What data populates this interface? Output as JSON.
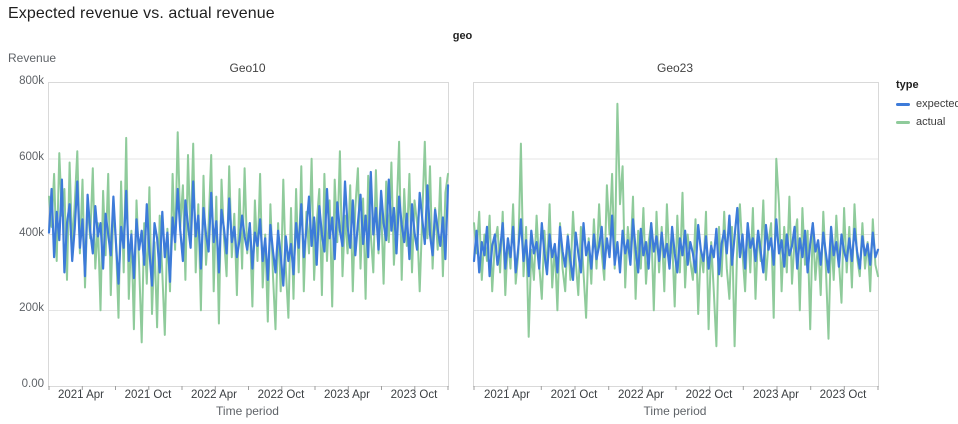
{
  "title": "Expected revenue vs. actual revenue",
  "facet_field_label": "geo",
  "legend": {
    "title": "type",
    "items": [
      {
        "name": "expected",
        "label": "expected",
        "color": "#3d7bd9"
      },
      {
        "name": "actual",
        "label": "actual",
        "color": "#8fcb9b"
      }
    ]
  },
  "colors": {
    "gridline": "#e4e4e4",
    "panel_border": "#d9d9d9",
    "tick_mark": "#9e9e9e",
    "background": "#ffffff"
  },
  "chart_data": {
    "type": "line",
    "ylabel": "Revenue",
    "xlabel": "Time period",
    "value_unit": "thousands",
    "interval": "weekly",
    "x_range": "Jan 2021 - Jan 2024",
    "ylim_k": [
      0,
      800
    ],
    "y_ticks": [
      "0.00",
      "200k",
      "400k",
      "600k",
      "800k"
    ],
    "gridline_values_k": [
      200,
      400,
      600
    ],
    "x_total_months": 36,
    "x_tick_months": [
      3,
      9,
      15,
      21,
      27,
      33
    ],
    "x_tick_labels": [
      "2021 Apr",
      "2021 Oct",
      "2022 Apr",
      "2022 Oct",
      "2023 Apr",
      "2023 Oct"
    ],
    "x_minor_tick_months": [
      0,
      6,
      12,
      18,
      24,
      30,
      36
    ],
    "facets": [
      {
        "title": "Geo10",
        "series": [
          {
            "name": "expected",
            "values": [
              405,
              520,
              340,
              460,
              385,
              545,
              300,
              430,
              480,
              330,
              415,
              540,
              365,
              440,
              290,
              505,
              410,
              350,
              475,
              395,
              430,
              310,
              455,
              400,
              345,
              500,
              380,
              270,
              420,
              365,
              515,
              330,
              400,
              285,
              440,
              360,
              410,
              320,
              480,
              355,
              265,
              430,
              390,
              300,
              460,
              340,
              405,
              275,
              445,
              380,
              520,
              410,
              330,
              490,
              425,
              365,
              540,
              395,
              450,
              310,
              470,
              400,
              355,
              510,
              380,
              435,
              300,
              465,
              415,
              350,
              495,
              380,
              420,
              340,
              385,
              450,
              395,
              360,
              430,
              310,
              405,
              370,
              440,
              330,
              390,
              280,
              425,
              355,
              300,
              410,
              345,
              265,
              395,
              330,
              375,
              295,
              430,
              365,
              480,
              340,
              415,
              500,
              370,
              445,
              320,
              475,
              400,
              355,
              520,
              390,
              445,
              335,
              485,
              410,
              370,
              540,
              420,
              365,
              490,
              345,
              430,
              505,
              375,
              450,
              340,
              565,
              400,
              470,
              360,
              515,
              430,
              385,
              545,
              410,
              470,
              350,
              500,
              425,
              380,
              455,
              335,
              480,
              405,
              360,
              510,
              440,
              375,
              530,
              400,
              345,
              465,
              415,
              370,
              445,
              335,
              530
            ]
          },
          {
            "name": "actual",
            "values": [
              500,
              420,
              560,
              330,
              615,
              450,
              520,
              280,
              590,
              370,
              480,
              620,
              350,
              545,
              260,
              480,
              390,
              575,
              310,
              430,
              200,
              515,
              345,
              560,
              240,
              470,
              385,
              180,
              540,
              300,
              655,
              230,
              410,
              150,
              490,
              320,
              115,
              430,
              270,
              525,
              190,
              380,
              155,
              450,
              300,
              135,
              415,
              250,
              560,
              360,
              670,
              420,
              530,
              280,
              610,
              385,
              640,
              300,
              480,
              200,
              555,
              320,
              425,
              610,
              250,
              500,
              165,
              545,
              390,
              290,
              580,
              340,
              455,
              240,
              520,
              310,
              575,
              350,
              430,
              210,
              490,
              330,
              560,
              260,
              400,
              170,
              480,
              290,
              150,
              430,
              250,
              545,
              310,
              180,
              470,
              230,
              520,
              300,
              580,
              250,
              460,
              350,
              600,
              280,
              430,
              520,
              240,
              560,
              330,
              490,
              210,
              545,
              380,
              620,
              290,
              450,
              350,
              530,
              250,
              470,
              575,
              310,
              495,
              230,
              555,
              400,
              300,
              570,
              350,
              480,
              270,
              540,
              380,
              590,
              320,
              450,
              645,
              280,
              520,
              370,
              560,
              300,
              490,
              430,
              250,
              450,
              645,
              390,
              580,
              310,
              470,
              360,
              550,
              290,
              510,
              560
            ]
          }
        ]
      },
      {
        "title": "Geo23",
        "series": [
          {
            "name": "expected",
            "values": [
              330,
              410,
              300,
              380,
              345,
              420,
              290,
              370,
              400,
              320,
              360,
              430,
              310,
              390,
              340,
              420,
              300,
              365,
              440,
              330,
              385,
              290,
              410,
              350,
              380,
              310,
              430,
              350,
              295,
              400,
              340,
              375,
              300,
              420,
              355,
              315,
              395,
              330,
              280,
              405,
              350,
              300,
              430,
              345,
              380,
              310,
              400,
              335,
              370,
              420,
              310,
              390,
              340,
              450,
              320,
              380,
              300,
              410,
              350,
              385,
              320,
              440,
              360,
              300,
              415,
              345,
              380,
              310,
              430,
              355,
              395,
              330,
              405,
              340,
              375,
              310,
              420,
              350,
              300,
              390,
              345,
              410,
              320,
              380,
              350,
              300,
              425,
              360,
              330,
              395,
              310,
              370,
              340,
              415,
              295,
              375,
              410,
              350,
              450,
              320,
              395,
              470,
              340,
              400,
              310,
              430,
              365,
              390,
              330,
              410,
              355,
              300,
              425,
              360,
              390,
              320,
              440,
              350,
              385,
              315,
              400,
              345,
              370,
              420,
              310,
              390,
              340,
              410,
              300,
              375,
              430,
              355,
              385,
              320,
              405,
              350,
              300,
              420,
              345,
              380,
              315,
              400,
              355,
              330,
              390,
              330,
              415,
              355,
              310,
              395,
              345,
              375,
              320,
              405,
              340,
              360
            ]
          },
          {
            "name": "actual",
            "values": [
              430,
              350,
              460,
              280,
              400,
              330,
              450,
              250,
              380,
              420,
              300,
              460,
              240,
              390,
              310,
              480,
              270,
              350,
              640,
              290,
              420,
              130,
              360,
              280,
              450,
              320,
              230,
              410,
              300,
              480,
              260,
              370,
              200,
              430,
              310,
              250,
              400,
              280,
              460,
              330,
              240,
              420,
              300,
              180,
              390,
              270,
              440,
              310,
              480,
              350,
              280,
              530,
              400,
              560,
              310,
              745,
              480,
              580,
              260,
              420,
              340,
              500,
              230,
              410,
              310,
              470,
              270,
              380,
              430,
              200,
              460,
              300,
              420,
              250,
              480,
              320,
              390,
              210,
              450,
              300,
              510,
              260,
              400,
              330,
              280,
              440,
              190,
              360,
              300,
              460,
              150,
              380,
              250,
              105,
              420,
              290,
              460,
              310,
              230,
              420,
              105,
              380,
              480,
              350,
              250,
              430,
              300,
              470,
              230,
              410,
              330,
              490,
              280,
              380,
              430,
              180,
              600,
              480,
              250,
              420,
              300,
              500,
              270,
              390,
              440,
              200,
              470,
              320,
              410,
              150,
              430,
              280,
              380,
              240,
              460,
              310,
              125,
              400,
              280,
              450,
              330,
              220,
              470,
              300,
              420,
              260,
              480,
              340,
              290,
              430,
              310,
              380,
              250,
              440,
              320,
              290
            ]
          }
        ]
      }
    ]
  }
}
